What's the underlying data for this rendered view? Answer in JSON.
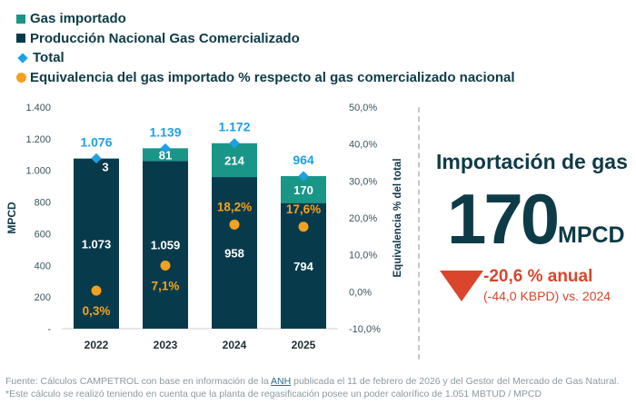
{
  "legend": [
    {
      "label": "Gas importado",
      "shape": "square",
      "color": "#1a9688"
    },
    {
      "label": "Producción Nacional Gas Comercializado",
      "shape": "square",
      "color": "#073b4c"
    },
    {
      "label": "Total",
      "shape": "diamond",
      "color": "#1ea0e6"
    },
    {
      "label": "Equivalencia del gas importado % respecto al gas comercializado nacional",
      "shape": "circle",
      "color": "#f5a020"
    }
  ],
  "chart_data": {
    "type": "bar",
    "stacked": true,
    "categories": [
      "2022",
      "2023",
      "2024",
      "2025"
    ],
    "series": [
      {
        "name": "Producción Nacional Gas Comercializado",
        "values": [
          1073,
          1059,
          958,
          794
        ],
        "labels": [
          "1.073",
          "1.059",
          "958",
          "794"
        ],
        "color": "#073b4c"
      },
      {
        "name": "Gas importado",
        "values": [
          3,
          81,
          214,
          170
        ],
        "labels": [
          "3",
          "81",
          "214",
          "170"
        ],
        "color": "#1a9688"
      },
      {
        "name": "Total",
        "type": "marker",
        "values": [
          1076,
          1139,
          1172,
          964
        ],
        "labels": [
          "1.076",
          "1.139",
          "1.172",
          "964"
        ],
        "color": "#1ea0e6"
      },
      {
        "name": "Equivalencia del gas importado % respecto al gas comercializado nacional",
        "type": "scatter",
        "axis": "right",
        "values": [
          0.3,
          7.1,
          18.2,
          17.6
        ],
        "labels": [
          "0,3%",
          "7,1%",
          "18,2%",
          "17,6%"
        ],
        "color": "#f5a020"
      }
    ],
    "ylabel": "MPCD",
    "ylim": [
      0,
      1400
    ],
    "yticks": [
      "-",
      "200",
      "400",
      "600",
      "800",
      "1.000",
      "1.200",
      "1.400"
    ],
    "y2label": "Equivalencia % del total",
    "y2lim": [
      -10,
      50
    ],
    "y2ticks": [
      "-10,0%",
      "0,0%",
      "10,0%",
      "20,0%",
      "30,0%",
      "40,0%",
      "50,0%"
    ],
    "grid": false
  },
  "panel": {
    "title": "Importación de gas",
    "value": "170",
    "unit": "MPCD",
    "change": "-20,6 % anual",
    "change_detail": "(-44,0 KBPD) vs. 2024",
    "change_color": "#d9462b"
  },
  "footer": {
    "line1_a": "Fuente: Cálculos CAMPETROL con base en información de la ",
    "link": "ANH",
    "line1_b": " publicada el 11 de febrero de 2026 y del Gestor del Mercado de Gas Natural.",
    "line2": "*Este cálculo se realizó teniendo en cuenta que la planta de regasificación posee un poder calorífico de 1.051 MBTUD / MPCD"
  }
}
